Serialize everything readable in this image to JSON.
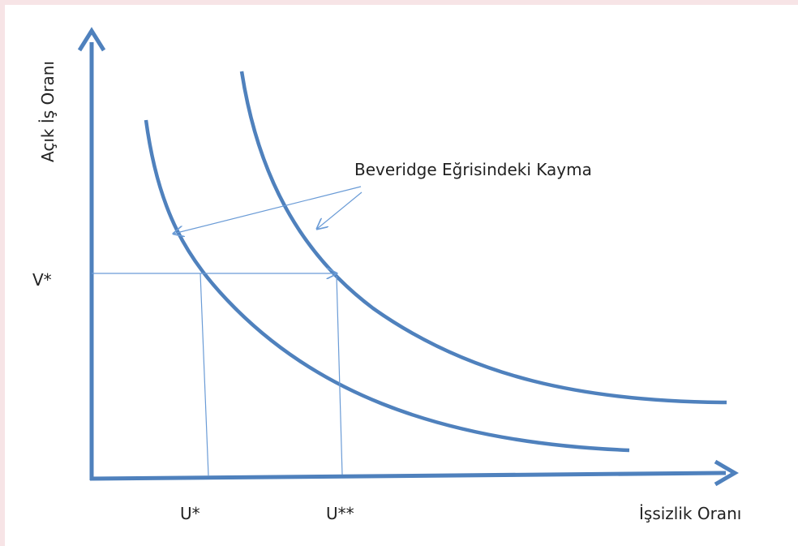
{
  "axes": {
    "y_label": "Açık İş Oranı",
    "x_label": "İşsizlik Oranı"
  },
  "labels": {
    "v_star": "V*",
    "u_star": "U*",
    "u_double_star": "U**"
  },
  "annotation": "Beveridge Eğrisindeki Kayma"
}
